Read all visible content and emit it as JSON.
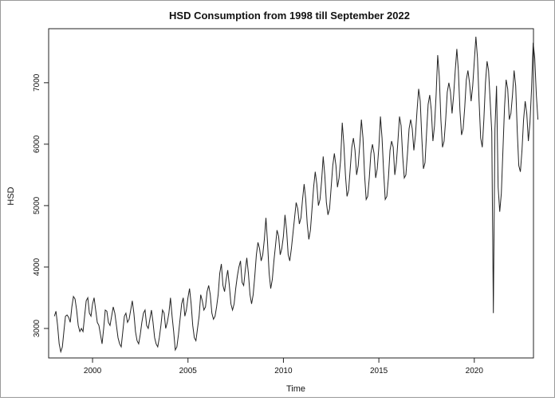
{
  "chart_data": {
    "type": "line",
    "title": "HSD Consumption from 1998 till September 2022",
    "xlabel": "Time",
    "ylabel": "HSD",
    "xlim": [
      1997.7,
      2023.1
    ],
    "ylim": [
      2520,
      7880
    ],
    "x_ticks": [
      2000,
      2005,
      2010,
      2015,
      2020
    ],
    "y_ticks": [
      3000,
      4000,
      5000,
      6000,
      7000
    ],
    "grid": false,
    "series": [
      {
        "start": 1998.0,
        "frequency": 12,
        "values": [
          3200,
          3280,
          3050,
          2750,
          2620,
          2700,
          2950,
          3200,
          3220,
          3180,
          3100,
          3350,
          3520,
          3480,
          3300,
          3050,
          2950,
          3000,
          2950,
          3200,
          3450,
          3500,
          3250,
          3200,
          3400,
          3500,
          3300,
          3100,
          3050,
          2900,
          2750,
          3000,
          3300,
          3280,
          3100,
          3050,
          3200,
          3350,
          3250,
          3050,
          2850,
          2750,
          2700,
          2950,
          3200,
          3250,
          3100,
          3150,
          3300,
          3450,
          3250,
          2950,
          2800,
          2750,
          2900,
          3100,
          3250,
          3300,
          3050,
          3000,
          3150,
          3300,
          3100,
          2850,
          2750,
          2700,
          2850,
          3050,
          3300,
          3250,
          3000,
          3100,
          3250,
          3500,
          3200,
          2950,
          2650,
          2700,
          2900,
          3150,
          3400,
          3500,
          3200,
          3300,
          3500,
          3650,
          3400,
          3050,
          2850,
          2800,
          3000,
          3200,
          3550,
          3450,
          3300,
          3350,
          3600,
          3700,
          3550,
          3250,
          3150,
          3200,
          3350,
          3550,
          3900,
          4050,
          3700,
          3600,
          3800,
          3950,
          3700,
          3400,
          3300,
          3400,
          3650,
          3850,
          4000,
          4100,
          3750,
          3700,
          3950,
          4150,
          3900,
          3550,
          3400,
          3550,
          3850,
          4200,
          4400,
          4300,
          4100,
          4200,
          4450,
          4800,
          4400,
          3900,
          3650,
          3800,
          4100,
          4350,
          4600,
          4500,
          4200,
          4300,
          4500,
          4850,
          4600,
          4200,
          4100,
          4300,
          4550,
          4800,
          5050,
          4950,
          4700,
          4800,
          5100,
          5350,
          5100,
          4700,
          4450,
          4600,
          4950,
          5300,
          5550,
          5350,
          5000,
          5100,
          5400,
          5800,
          5500,
          5050,
          4850,
          4950,
          5300,
          5650,
          5850,
          5650,
          5300,
          5450,
          5750,
          6350,
          6000,
          5500,
          5150,
          5250,
          5600,
          5950,
          6100,
          5900,
          5500,
          5650,
          6000,
          6400,
          6100,
          5500,
          5100,
          5150,
          5450,
          5850,
          6000,
          5850,
          5450,
          5600,
          5950,
          6450,
          6100,
          5550,
          5100,
          5150,
          5450,
          5900,
          6050,
          5950,
          5500,
          5700,
          6050,
          6450,
          6300,
          5800,
          5450,
          5500,
          5850,
          6250,
          6400,
          6250,
          5900,
          6150,
          6550,
          6900,
          6700,
          6100,
          5600,
          5700,
          6200,
          6650,
          6800,
          6550,
          6050,
          6300,
          6800,
          7450,
          7100,
          6400,
          5950,
          6050,
          6400,
          6850,
          7000,
          6850,
          6500,
          6800,
          7200,
          7550,
          7200,
          6550,
          6150,
          6250,
          6600,
          7050,
          7200,
          7000,
          6700,
          6950,
          7350,
          7750,
          7400,
          6700,
          6100,
          5950,
          6400,
          7000,
          7350,
          7200,
          6700,
          6200,
          3250,
          6250,
          6950,
          5300,
          4900,
          5200,
          5900,
          6600,
          7050,
          6900,
          6400,
          6500,
          6800,
          7200,
          6950,
          6200,
          5650,
          5550,
          5900,
          6400,
          6700,
          6500,
          6050,
          6350,
          6900,
          7650,
          7400,
          6800,
          6400
        ]
      }
    ]
  }
}
